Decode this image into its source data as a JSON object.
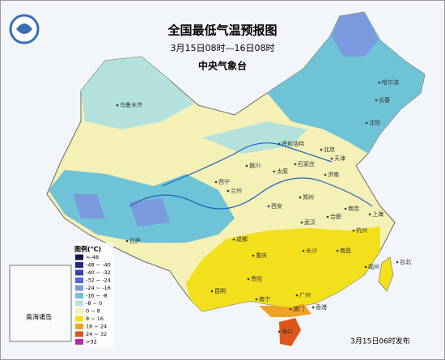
{
  "header": {
    "title": "全国最低气温预报图",
    "subtitle": "3月15日08时—16日08时",
    "agency": "中央气象台"
  },
  "legend": {
    "title": "图例(℃)",
    "items": [
      {
        "label": "<-48",
        "color": "#16164e"
      },
      {
        "label": "-48 ~ -40",
        "color": "#262a82"
      },
      {
        "label": "-40 ~ -32",
        "color": "#3c42ad"
      },
      {
        "label": "-32 ~ -24",
        "color": "#5968cc"
      },
      {
        "label": "-24 ~ -16",
        "color": "#7b9ade"
      },
      {
        "label": "-16 ~ -8",
        "color": "#6fc3d6"
      },
      {
        "label": "-8 ~ 0",
        "color": "#b3e2dc"
      },
      {
        "label": "0 ~ 8",
        "color": "#f4f0b6"
      },
      {
        "label": "8 ~ 16",
        "color": "#f3e01c"
      },
      {
        "label": "16 ~ 24",
        "color": "#f0a223"
      },
      {
        "label": "24 ~ 32",
        "color": "#e0561a"
      },
      {
        "label": ">32",
        "color": "#b02f9e"
      }
    ]
  },
  "cities": [
    "乌鲁木齐",
    "哈尔滨",
    "长春",
    "沈阳",
    "呼和浩特",
    "北京",
    "天津",
    "石家庄",
    "太原",
    "济南",
    "银川",
    "西宁",
    "兰州",
    "西安",
    "郑州",
    "合肥",
    "南京",
    "上海",
    "杭州",
    "武汉",
    "成都",
    "重庆",
    "拉萨",
    "长沙",
    "南昌",
    "福州",
    "台北",
    "贵阳",
    "昆明",
    "南宁",
    "广州",
    "香港",
    "澳门",
    "海口"
  ],
  "inset": {
    "label": "南海诸岛"
  },
  "footer": {
    "release": "3月15日06时发布"
  }
}
